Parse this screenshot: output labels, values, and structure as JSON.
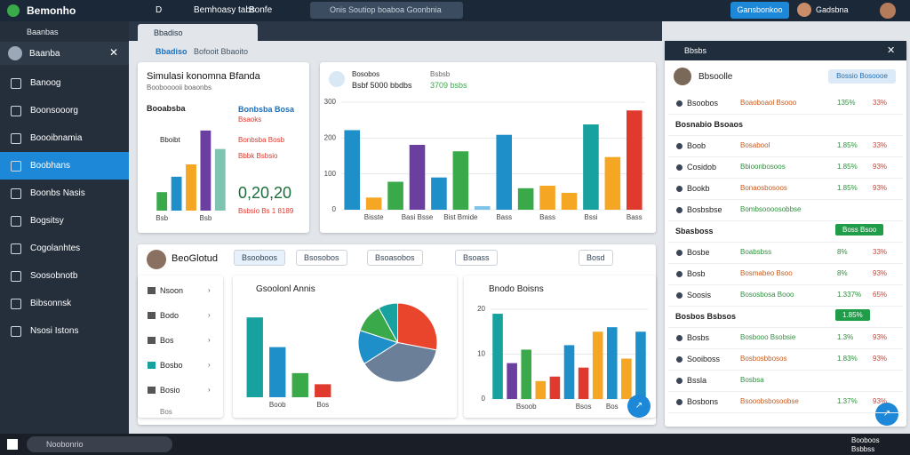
{
  "topbar": {
    "logo": "Bemonho",
    "menu": [
      "D",
      "Bemhoasy tabs",
      "Bonfe"
    ],
    "search": "Onis Soutiop boaboa Goonbnia",
    "button": "Gansbonkoo",
    "user": "Gadsbna"
  },
  "sidebar": {
    "header": "Baanbas",
    "user": "Baanba",
    "active": 3,
    "items": [
      "Banoog",
      "Boonsooorg",
      "Boooibnamia",
      "Boobhans",
      "Boonbs Nasis",
      "Bogsitsy",
      "Cogolanhtes",
      "Soosobnotb",
      "Bibsonnsk",
      "Nsosi Istons"
    ]
  },
  "tabs": [
    "Bbadiso",
    "Bofooit Bbaoito"
  ],
  "card1": {
    "title": "Simulasi konomna Bfanda",
    "subtitle": "Boobooooii boaonbs",
    "chart_label": "Booabsba",
    "legend": "Bboibt",
    "stat_label": "Bonbsba Bosa",
    "stat_sub": "Bsaoks",
    "lines": [
      "Bonbsba Bosb",
      "Bbbk Bsbsio"
    ],
    "big": "0,20,20",
    "foot": "Bsbsio Bs 1 8189"
  },
  "card2": {
    "label": "Bosobos",
    "sub": "Bsbf 5000 bbdbs",
    "head": "Bsbsb",
    "value": "3709 bsbs"
  },
  "row2": {
    "user": "BeoGlotud",
    "buttons": [
      "Bsooboos",
      "Bsosobos",
      "Bsoasobos",
      "Bsoass",
      "Bosd"
    ],
    "list": [
      "Nsoon",
      "Bodo",
      "Bos",
      "Bosbo",
      "Bosio"
    ],
    "list_foot": "Bos",
    "card_a": "Gsoolonl Annis",
    "card_b": "Bnodo Boisns"
  },
  "right_panel": {
    "header": "Bbsbs",
    "profile": "Bbsoolle",
    "button": "Bossio Bosoooe",
    "items": [
      {
        "name": "Bsoobos",
        "desc": "Boaoboaol Bsooo",
        "a": "135%",
        "b": "33%"
      },
      {
        "heading": "Bosnabio Bsoaos"
      },
      {
        "name": "Boob",
        "desc": "Bosabool",
        "a": "1.85%",
        "b": "33%"
      },
      {
        "name": "Cosidob",
        "desc": "Bbioonbosoos",
        "a": "1.85%",
        "b": "93%"
      },
      {
        "name": "Bookb",
        "desc": "Bonaosbosoos",
        "a": "1.85%",
        "b": "93%"
      },
      {
        "name": "Bosbsbse",
        "desc": "Bombsoooosobbse"
      },
      {
        "heading": "Sbasboss",
        "badge": "Boss Bsoo"
      },
      {
        "name": "Bosbe",
        "desc": "Boabsbss",
        "a": "8%",
        "b": "33%"
      },
      {
        "name": "Bosb",
        "desc": "Bosmabeo Bsoo",
        "a": "8%",
        "b": "93%"
      },
      {
        "name": "Soosis",
        "desc": "Bososbosa Booo",
        "a": "1.337%",
        "b": "65%"
      },
      {
        "heading": "Bosbos Bsbsos",
        "badge": "1.85%"
      },
      {
        "name": "Bosbs",
        "desc": "Bosbooo Bsobsie",
        "a": "1.3%",
        "b": "93%"
      },
      {
        "name": "Sooiboss",
        "desc": "Bosbosbbosos",
        "a": "1.83%",
        "b": "93%"
      },
      {
        "name": "Bssla",
        "desc": "Bosbsa"
      },
      {
        "name": "Bosbons",
        "desc": "Bsooobsbosoobse",
        "a": "1.37%",
        "b": "93%"
      }
    ]
  },
  "taskbar": {
    "search": "Noobonrio",
    "time": "Booboos",
    "date": "Bsbbss"
  },
  "chart_data": [
    {
      "type": "bar",
      "ylim": [
        0,
        300
      ],
      "yticks": [
        0,
        100,
        200,
        300
      ],
      "grid": true,
      "categories": [
        null,
        "Bisste",
        null,
        "Basi Bsse",
        null,
        "Bist Bmide",
        null,
        "Bass",
        null,
        "Bass",
        null,
        "Bssi",
        null,
        "Bass"
      ],
      "values": [
        222,
        34,
        78,
        181,
        90,
        163,
        10,
        209,
        60,
        67,
        47,
        238,
        147,
        277
      ],
      "colors": [
        "#1f8fc9",
        "#f5a623",
        "#3aa94a",
        "#6b3fa0",
        "#1f8fc9",
        "#3aa94a",
        "#7fc4e8",
        "#1f8fc9",
        "#3aa94a",
        "#f5a623",
        "#f5a623",
        "#17a2a0",
        "#f5a623",
        "#e03a2f"
      ]
    },
    {
      "type": "bar",
      "ylim": [
        0,
        90
      ],
      "categories": [
        null,
        "Boob",
        null,
        "Bos"
      ],
      "values": [
        86,
        54,
        26,
        14
      ],
      "colors": [
        "#17a2a0",
        "#1f8fc9",
        "#3aa94a",
        "#e03a2f"
      ]
    },
    {
      "type": "pie",
      "values": [
        28,
        38,
        14,
        12,
        8
      ],
      "colors": [
        "#e8452c",
        "#6c7f99",
        "#1f8fc9",
        "#3aa94a",
        "#17a2a0"
      ]
    },
    {
      "type": "bar",
      "ylim": [
        0,
        20
      ],
      "yticks": [
        0,
        10,
        20
      ],
      "grid": true,
      "categories": [
        null,
        null,
        "Bsoob",
        null,
        null,
        null,
        "Bsos",
        null,
        "Bos",
        null,
        null
      ],
      "values": [
        19,
        8,
        11,
        4,
        5,
        12,
        7,
        15,
        16,
        9,
        15
      ],
      "colors": [
        "#17a2a0",
        "#6b3fa0",
        "#3aa94a",
        "#f5a623",
        "#e03a2f",
        "#1f8fc9",
        "#e03a2f",
        "#f5a623",
        "#1f8fc9",
        "#f5a623",
        "#1f8fc9"
      ]
    },
    {
      "type": "bar",
      "ylim": [
        0,
        60
      ],
      "categories": [
        "Bsb",
        null,
        null,
        "Bsb",
        null
      ],
      "values": [
        12,
        22,
        30,
        52,
        40
      ],
      "colors": [
        "#3aa94a",
        "#1f8fc9",
        "#f5a623",
        "#6b3fa0",
        "#7fc4b0"
      ]
    }
  ]
}
